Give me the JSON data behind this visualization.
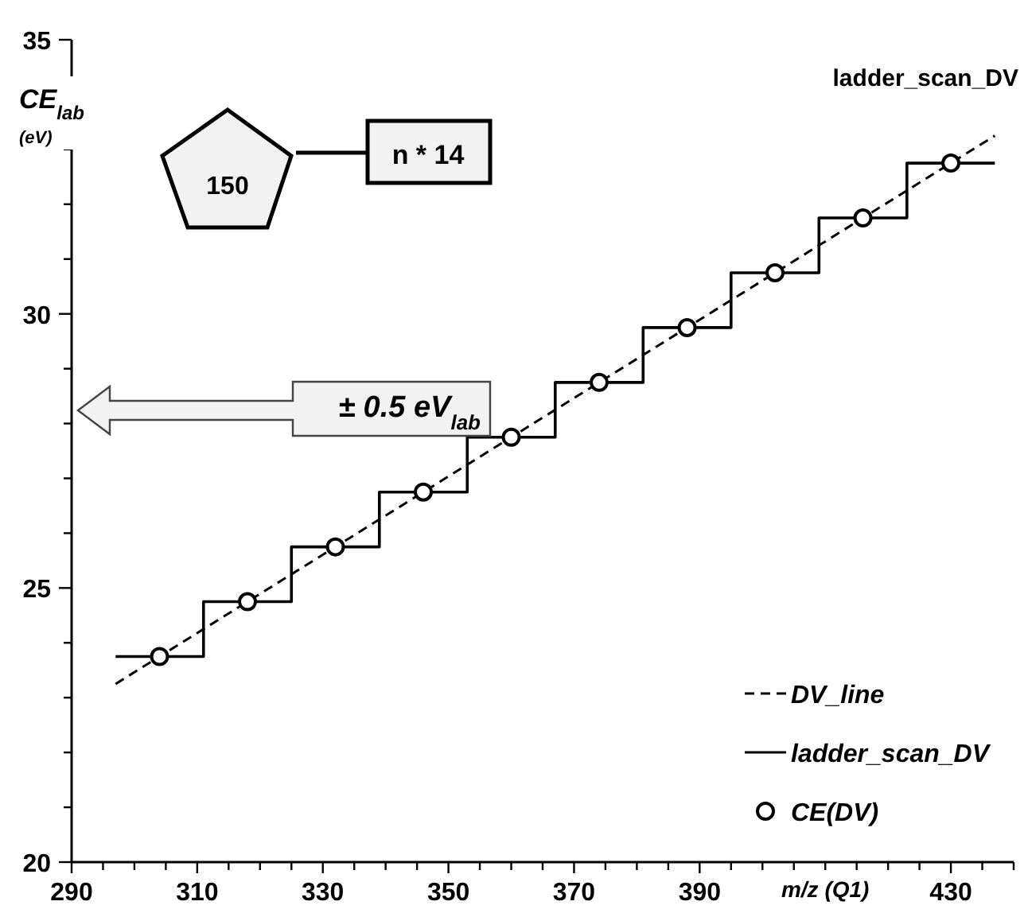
{
  "chart_data": {
    "type": "line",
    "title": "ladder_scan_DV",
    "xlabel": "m/z (Q1)",
    "ylabel": "CE$_{lab}$ (eV)",
    "annotations": [
      "150",
      "n * 14",
      "± 0.5 eV$_{lab}$"
    ],
    "xlim": [
      290,
      440
    ],
    "ylim": [
      20,
      35
    ],
    "xticks": [
      290,
      {
        "value": 295,
        "label": null
      },
      {
        "value": 300,
        "label": null
      },
      {
        "value": 305,
        "label": null
      },
      310,
      {
        "value": 315,
        "label": null
      },
      {
        "value": 320,
        "label": null
      },
      {
        "value": 325,
        "label": null
      },
      330,
      {
        "value": 335,
        "label": null
      },
      {
        "value": 340,
        "label": null
      },
      {
        "value": 345,
        "label": null
      },
      350,
      {
        "value": 355,
        "label": null
      },
      {
        "value": 360,
        "label": null
      },
      {
        "value": 365,
        "label": null
      },
      370,
      {
        "value": 375,
        "label": null
      },
      {
        "value": 380,
        "label": null
      },
      {
        "value": 385,
        "label": null
      },
      390,
      {
        "value": 395,
        "label": null
      },
      {
        "value": 400,
        "label": null
      },
      {
        "value": 405,
        "label": null
      },
      {
        "value": 410,
        "label": null
      },
      {
        "value": 415,
        "label": null
      },
      {
        "value": 420,
        "label": null
      },
      {
        "value": 425,
        "label": null
      },
      430,
      {
        "value": 435,
        "label": null
      },
      {
        "value": 440,
        "label": null
      }
    ],
    "yticks": [
      20,
      {
        "value": 21,
        "label": null
      },
      {
        "value": 22,
        "label": null
      },
      {
        "value": 23,
        "label": null
      },
      {
        "value": 24,
        "label": null
      },
      25,
      {
        "value": 26,
        "label": null
      },
      {
        "value": 27,
        "label": null
      },
      {
        "value": 28,
        "label": null
      },
      {
        "value": 29,
        "label": null
      },
      30,
      {
        "value": 31,
        "label": null
      },
      {
        "value": 32,
        "label": null
      },
      {
        "value": 33,
        "label": null
      },
      {
        "value": 34,
        "label": null
      },
      35
    ],
    "grid": false,
    "legend": "bottom right",
    "series": [
      {
        "name": "DV_line",
        "color": "#000000",
        "line_style": "dashed",
        "x": [
          297,
          437
        ],
        "values": [
          23.25,
          33.25
        ]
      },
      {
        "name": "ladder_scan_DV",
        "type": "step",
        "color": "#000000",
        "line_style": "solid",
        "x": [
          297,
          311,
          325,
          339,
          353,
          367,
          381,
          395,
          409,
          423,
          437
        ],
        "values": [
          23.75,
          24.75,
          25.75,
          26.75,
          27.75,
          28.75,
          29.75,
          30.75,
          31.75,
          32.75,
          32.75
        ]
      },
      {
        "name": "CE(DV)",
        "type": "scatter",
        "color": "#000000",
        "marker": "circle",
        "x": [
          304,
          318,
          332,
          346,
          360,
          374,
          388,
          402,
          416,
          430
        ],
        "values": [
          23.75,
          24.75,
          25.75,
          26.75,
          27.75,
          28.75,
          29.75,
          30.75,
          31.75,
          32.75
        ]
      }
    ]
  }
}
